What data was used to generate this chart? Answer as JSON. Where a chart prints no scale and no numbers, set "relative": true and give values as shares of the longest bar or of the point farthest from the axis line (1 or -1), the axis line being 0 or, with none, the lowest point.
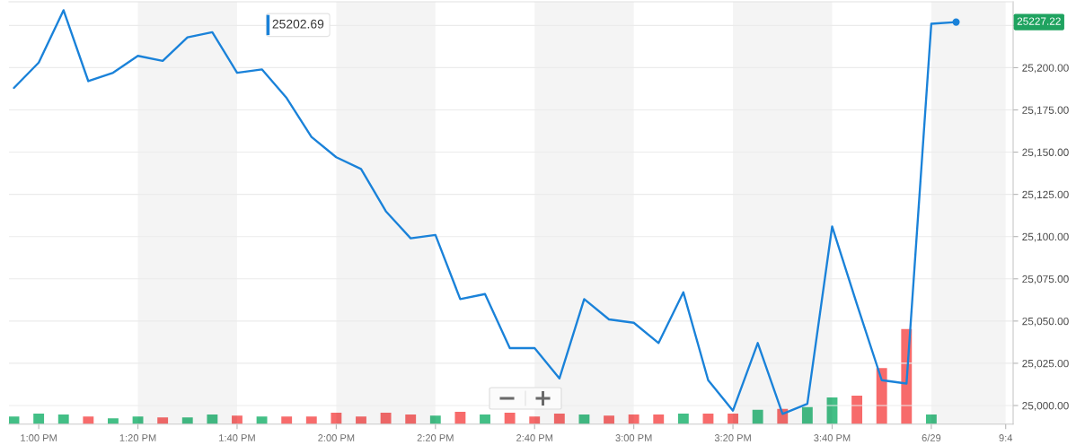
{
  "chart_data": [
    {
      "type": "line",
      "categories": [
        null,
        "1:00 PM",
        null,
        null,
        null,
        "1:20 PM",
        null,
        null,
        null,
        "1:40 PM",
        null,
        null,
        null,
        "2:00 PM",
        null,
        null,
        null,
        "2:20 PM",
        null,
        null,
        null,
        "2:40 PM",
        null,
        null,
        null,
        "3:00 PM",
        null,
        null,
        null,
        "3:20 PM",
        null,
        null,
        null,
        "3:40 PM",
        null,
        null,
        null,
        "6/29",
        null,
        null,
        "9:4"
      ],
      "series": [
        {
          "color": "#1a82d9",
          "marker": "none",
          "values": [
            25188,
            25203,
            25234,
            25192,
            25197,
            25207,
            25204,
            25218,
            25221,
            25197,
            25199,
            25182,
            25159,
            25147,
            25140,
            25115,
            25099,
            25101,
            25063,
            25066,
            25034,
            25034,
            25016,
            25063,
            25051,
            25049,
            25037,
            25067,
            25015,
            24997,
            25037,
            24995,
            25001,
            25106,
            25060,
            25015,
            25013,
            25226,
            25227,
            null,
            null
          ]
        },
        {
          "type": "scatter",
          "color": "#1a82d9",
          "marker": "circle",
          "values": [
            null,
            null,
            null,
            null,
            null,
            null,
            null,
            null,
            null,
            null,
            null,
            null,
            null,
            null,
            null,
            null,
            null,
            null,
            null,
            null,
            null,
            null,
            null,
            null,
            null,
            null,
            null,
            null,
            null,
            null,
            null,
            null,
            null,
            null,
            null,
            null,
            null,
            null,
            25227,
            null,
            null
          ]
        }
      ],
      "ylim": [
        24989,
        25239
      ],
      "yticks": [
        {
          "value": 25000,
          "label": "25,000.00"
        },
        {
          "value": 25025,
          "label": "25,025.00"
        },
        {
          "value": 25050,
          "label": "25,050.00"
        },
        {
          "value": 25075,
          "label": "25,075.00"
        },
        {
          "value": 25100,
          "label": "25,100.00"
        },
        {
          "value": 25125,
          "label": "25,125.00"
        },
        {
          "value": 25150,
          "label": "25,150.00"
        },
        {
          "value": 25175,
          "label": "25,175.00"
        },
        {
          "value": 25200,
          "label": "25,200.00"
        },
        {
          "value": 25225,
          "label": null
        }
      ],
      "grid": "y",
      "bands": [
        {
          "axis": "x",
          "from": "1:20 PM",
          "to": "1:40 PM",
          "color": "#f4f4f4"
        },
        {
          "axis": "x",
          "from": "2:00 PM",
          "to": "2:20 PM",
          "color": "#f4f4f4"
        },
        {
          "axis": "x",
          "from": "2:40 PM",
          "to": "3:00 PM",
          "color": "#f4f4f4"
        },
        {
          "axis": "x",
          "from": "3:20 PM",
          "to": "3:40 PM",
          "color": "#f4f4f4"
        },
        {
          "axis": "x",
          "from": "6/29",
          "to": "9:4",
          "color": "#f4f4f4"
        }
      ],
      "annotations": [
        "25202.69",
        "25227.22"
      ]
    },
    {
      "type": "bar",
      "relative": true,
      "tick_labels": false,
      "categories": [
        null,
        null,
        null,
        null,
        null,
        null,
        null,
        null,
        null,
        null,
        null,
        null,
        null,
        null,
        null,
        null,
        null,
        null,
        null,
        null,
        null,
        null,
        null,
        null,
        null,
        null,
        null,
        null,
        null,
        null,
        null,
        null,
        null,
        null,
        null,
        null,
        null,
        null,
        null,
        null,
        null
      ],
      "values": [
        0.08,
        0.11,
        0.1,
        0.08,
        0.06,
        0.08,
        0.07,
        0.07,
        0.1,
        0.09,
        0.08,
        0.08,
        0.08,
        0.12,
        0.08,
        0.12,
        0.1,
        0.09,
        0.13,
        0.1,
        0.12,
        0.08,
        0.11,
        0.1,
        0.09,
        0.1,
        0.1,
        0.11,
        0.11,
        0.11,
        0.15,
        0.16,
        0.18,
        0.28,
        0.3,
        0.59,
        1,
        0.1,
        null,
        null,
        null
      ],
      "colors": [
        "#43bf86",
        "#43bf86",
        "#43bf86",
        "#f76b6b",
        "#43bf86",
        "#43bf86",
        "#f76b6b",
        "#43bf86",
        "#43bf86",
        "#f76b6b",
        "#43bf86",
        "#f76b6b",
        "#f76b6b",
        "#f76b6b",
        "#f76b6b",
        "#f76b6b",
        "#f76b6b",
        "#43bf86",
        "#f76b6b",
        "#43bf86",
        "#f76b6b",
        "#f76b6b",
        "#f76b6b",
        "#43bf86",
        "#f76b6b",
        "#f76b6b",
        "#f76b6b",
        "#43bf86",
        "#f76b6b",
        "#f76b6b",
        "#43bf86",
        "#f76b6b",
        "#43bf86",
        "#43bf86",
        "#f76b6b",
        "#f76b6b",
        "#f76b6b",
        "#43bf86",
        null,
        null,
        null
      ]
    }
  ]
}
